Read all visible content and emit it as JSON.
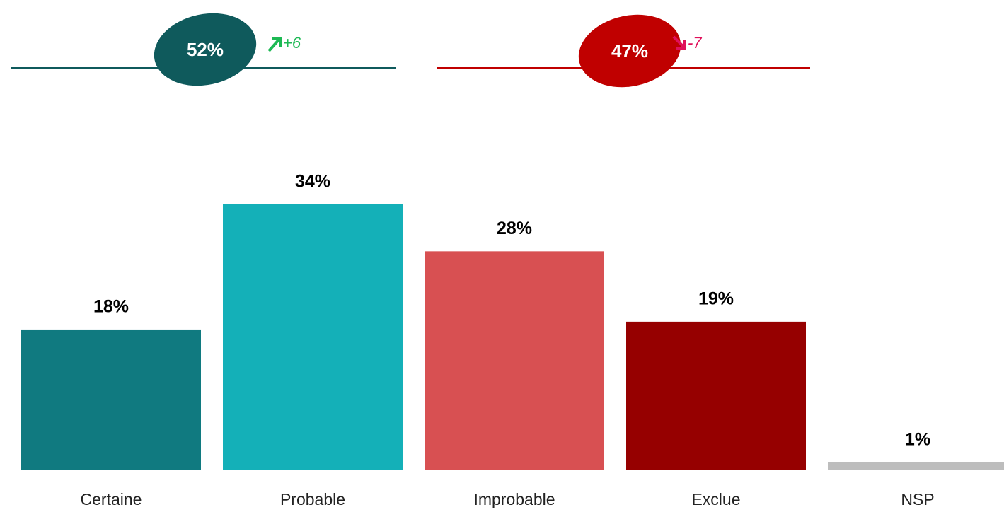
{
  "chart_data": {
    "type": "bar",
    "categories": [
      "Certaine",
      "Probable",
      "Improbable",
      "Exclue",
      "NSP"
    ],
    "values": [
      18,
      34,
      28,
      19,
      1
    ],
    "value_labels": [
      "18%",
      "34%",
      "28%",
      "19%",
      "1%"
    ],
    "colors": [
      "#107a80",
      "#14b0b8",
      "#d85052",
      "#960000",
      "#bdbdbd"
    ],
    "summaries": [
      {
        "value": 52,
        "value_label": "52%",
        "change": 6,
        "change_label": "+6",
        "color": "#0f5a5c",
        "change_color": "#1db954"
      },
      {
        "value": 47,
        "value_label": "47%",
        "change": -7,
        "change_label": "-7",
        "color": "#c00000",
        "change_color": "#e0105a"
      }
    ]
  }
}
